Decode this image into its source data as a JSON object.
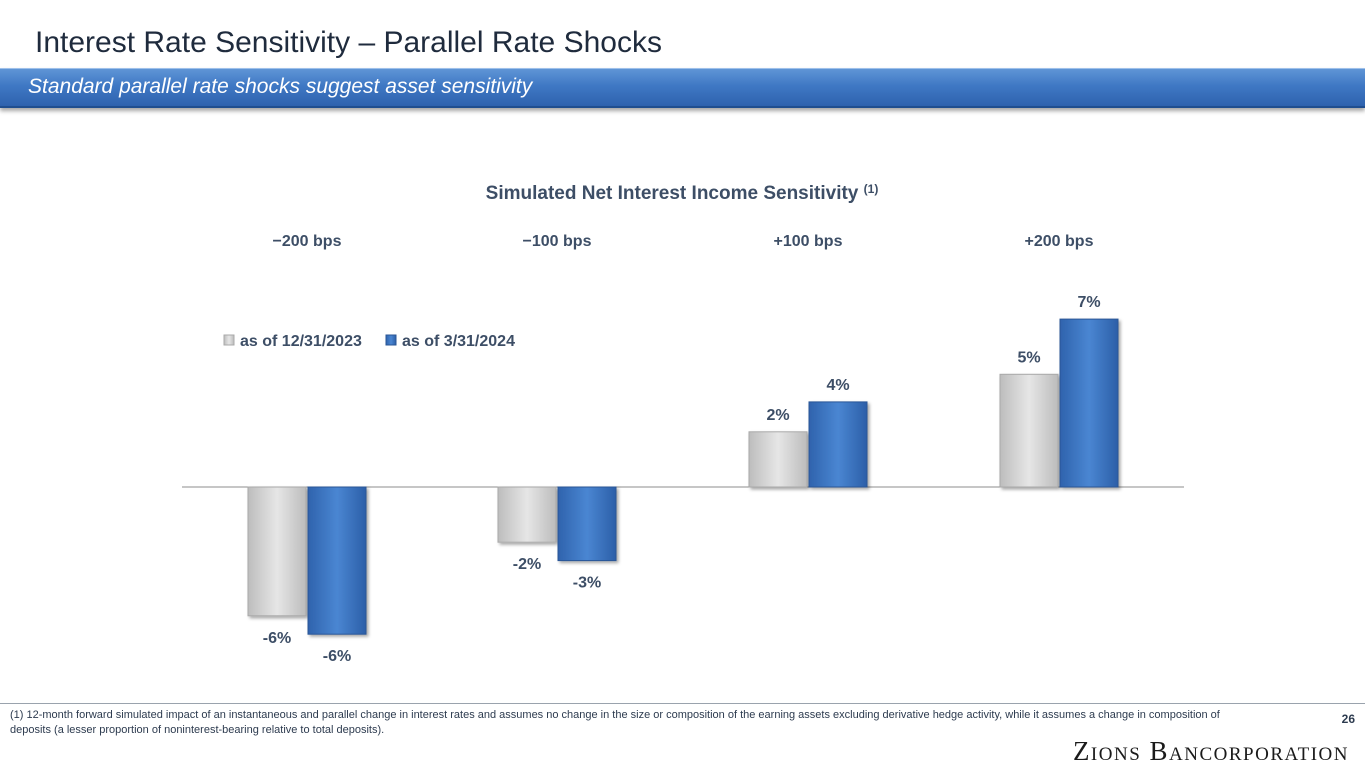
{
  "header": {
    "title": "Interest Rate Sensitivity – Parallel Rate Shocks",
    "subtitle": "Standard parallel rate shocks suggest asset sensitivity"
  },
  "chart_data": {
    "type": "bar",
    "title": "Simulated Net Interest Income Sensitivity",
    "title_superscript": "(1)",
    "categories": [
      "−200 bps",
      "−100 bps",
      "+100 bps",
      "+200 bps"
    ],
    "series": [
      {
        "name": "as of 12/31/2023",
        "values": [
          -6,
          -2,
          2,
          5
        ],
        "labels": [
          "-6%",
          "-2%",
          "2%",
          "5%"
        ],
        "color": "#d0d0d0"
      },
      {
        "name": "as of 3/31/2024",
        "values": [
          -6,
          -3,
          4,
          7
        ],
        "labels": [
          "-6%",
          "-3%",
          "4%",
          "7%"
        ],
        "color": "#3a72bf"
      }
    ],
    "exact_values": {
      "as of 12/31/2023": [
        -5.6,
        -2.4,
        2.4,
        4.9
      ],
      "as of 3/31/2024": [
        -6.4,
        -3.2,
        3.7,
        7.3
      ]
    },
    "legend_position": "top-left",
    "category_labels_position": "top",
    "value_axis_visible": false,
    "grid": false
  },
  "footer": {
    "footnote": "(1) 12-month forward simulated impact of an instantaneous and parallel change in interest rates and assumes no change in the size or composition of the earning assets excluding derivative hedge activity, while it assumes a change in composition of deposits (a lesser proportion of noninterest-bearing relative to total deposits).",
    "page_number": "26",
    "logo_text": "Zions Bancorporation"
  },
  "colors": {
    "accent": "#3a72bf",
    "text": "#3d4e66",
    "banner": "#3f78c4"
  }
}
